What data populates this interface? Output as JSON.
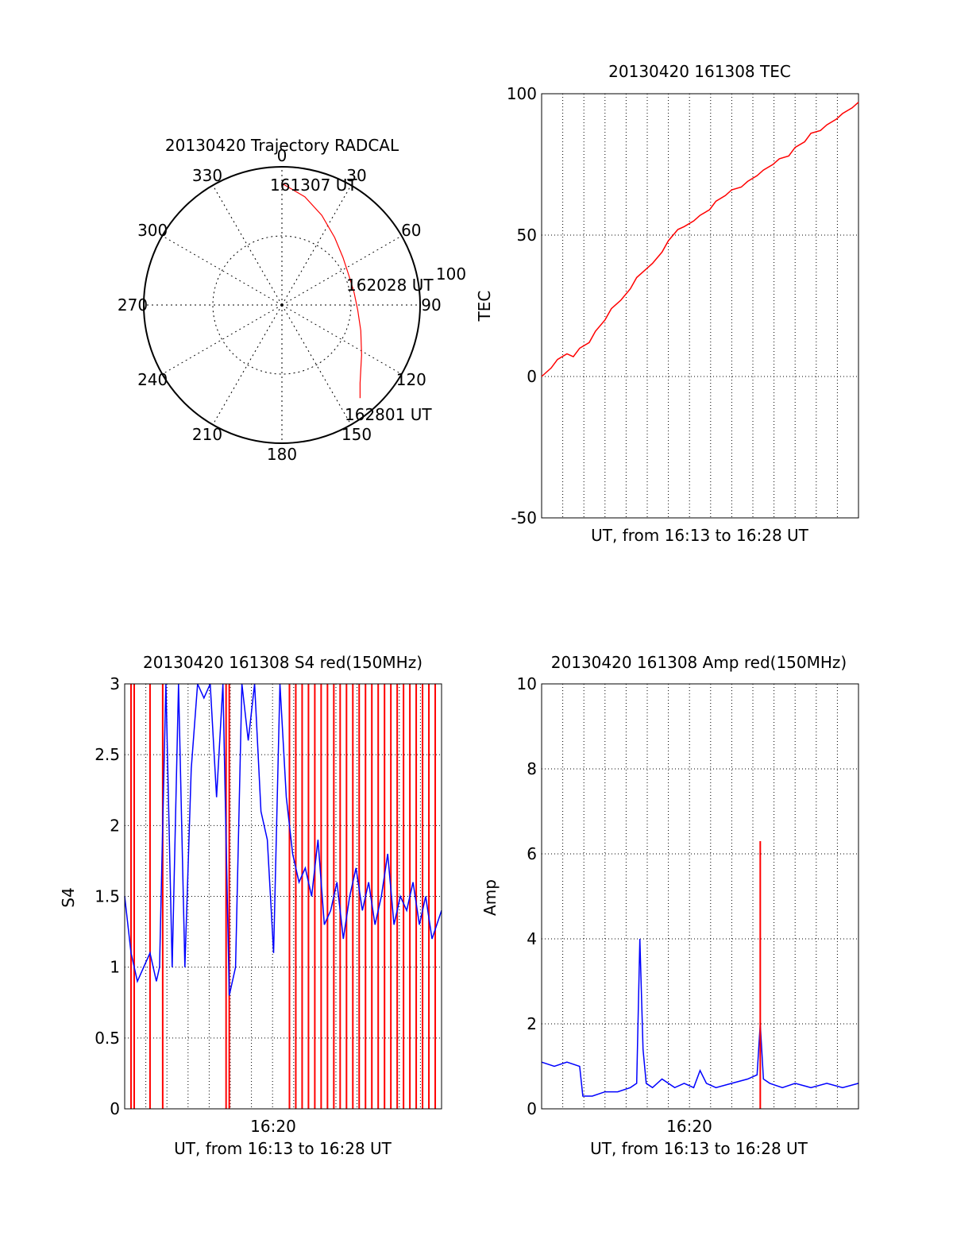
{
  "chart_data": [
    {
      "type": "polar",
      "title": "20130420 Trajectory RADCAL",
      "angle_labels": [
        "0",
        "30",
        "60",
        "90",
        "120",
        "150",
        "180",
        "210",
        "240",
        "270",
        "300",
        "330"
      ],
      "radius_label": "100",
      "rlim": [
        0,
        100
      ],
      "grid": true,
      "series": [
        {
          "color": "#ff0000",
          "points": [
            {
              "az": 0,
              "r": 88
            },
            {
              "az": 12,
              "r": 80
            },
            {
              "az": 24,
              "r": 71
            },
            {
              "az": 38,
              "r": 62
            },
            {
              "az": 52,
              "r": 56
            },
            {
              "az": 66,
              "r": 53
            },
            {
              "az": 80,
              "r": 53
            },
            {
              "az": 94,
              "r": 55
            },
            {
              "az": 108,
              "r": 60
            },
            {
              "az": 122,
              "r": 68
            },
            {
              "az": 135,
              "r": 80
            },
            {
              "az": 140,
              "r": 88
            }
          ]
        }
      ],
      "annotations": [
        "161307 UT",
        "162028 UT",
        "162801 UT"
      ]
    },
    {
      "type": "line",
      "title": "20130420 161308 TEC",
      "xlabel": "UT, from 16:13 to 16:28 UT",
      "ylabel": "TEC",
      "ylim": [
        -50,
        100
      ],
      "yticks": [
        "-50",
        "0",
        "50",
        "100"
      ],
      "grid": true,
      "series": [
        {
          "color": "#ff0000",
          "x_frac": [
            0,
            0.03,
            0.05,
            0.08,
            0.1,
            0.12,
            0.15,
            0.17,
            0.2,
            0.22,
            0.25,
            0.28,
            0.3,
            0.33,
            0.35,
            0.38,
            0.4,
            0.43,
            0.45,
            0.48,
            0.5,
            0.53,
            0.55,
            0.58,
            0.6,
            0.63,
            0.65,
            0.68,
            0.7,
            0.73,
            0.75,
            0.78,
            0.8,
            0.83,
            0.85,
            0.88,
            0.9,
            0.93,
            0.95,
            0.98,
            1.0
          ],
          "values": [
            0,
            3,
            6,
            8,
            7,
            10,
            12,
            16,
            20,
            24,
            27,
            31,
            35,
            38,
            40,
            44,
            48,
            52,
            53,
            55,
            57,
            59,
            62,
            64,
            66,
            67,
            69,
            71,
            73,
            75,
            77,
            78,
            81,
            83,
            86,
            87,
            89,
            91,
            93,
            95,
            97
          ]
        }
      ]
    },
    {
      "type": "line",
      "title": "20130420 161308 S4 red(150MHz)",
      "xlabel": "UT, from 16:13 to 16:28 UT",
      "ylabel": "S4",
      "xtick_label": "16:20",
      "ylim": [
        0,
        3
      ],
      "yticks": [
        "0",
        "0.5",
        "1",
        "1.5",
        "2",
        "2.5",
        "3"
      ],
      "grid": true,
      "series": [
        {
          "color": "#ff0000",
          "spikes_x_frac": [
            0.02,
            0.03,
            0.08,
            0.12,
            0.32,
            0.33,
            0.52,
            0.54,
            0.56,
            0.58,
            0.6,
            0.62,
            0.64,
            0.66,
            0.68,
            0.7,
            0.72,
            0.74,
            0.76,
            0.78,
            0.8,
            0.82,
            0.84,
            0.86,
            0.88,
            0.9,
            0.92,
            0.94,
            0.96,
            0.98
          ],
          "spike_value": 3
        },
        {
          "color": "#0000ff",
          "x_frac": [
            0,
            0.02,
            0.04,
            0.06,
            0.08,
            0.1,
            0.11,
            0.13,
            0.15,
            0.17,
            0.19,
            0.21,
            0.23,
            0.25,
            0.27,
            0.29,
            0.31,
            0.33,
            0.35,
            0.37,
            0.39,
            0.41,
            0.43,
            0.45,
            0.47,
            0.49,
            0.51,
            0.53,
            0.55,
            0.57,
            0.59,
            0.61,
            0.63,
            0.65,
            0.67,
            0.69,
            0.71,
            0.73,
            0.75,
            0.77,
            0.79,
            0.81,
            0.83,
            0.85,
            0.87,
            0.89,
            0.91,
            0.93,
            0.95,
            0.97,
            1.0
          ],
          "values": [
            1.5,
            1.1,
            0.9,
            1.0,
            1.1,
            0.9,
            1.0,
            3.0,
            1.0,
            3.0,
            1.0,
            2.4,
            3.0,
            2.9,
            3.0,
            2.2,
            3.0,
            0.8,
            1.0,
            3.0,
            2.6,
            3.0,
            2.1,
            1.9,
            1.1,
            3.0,
            2.2,
            1.8,
            1.6,
            1.7,
            1.5,
            1.9,
            1.3,
            1.4,
            1.6,
            1.2,
            1.5,
            1.7,
            1.4,
            1.6,
            1.3,
            1.5,
            1.8,
            1.3,
            1.5,
            1.4,
            1.6,
            1.3,
            1.5,
            1.2,
            1.4
          ]
        }
      ]
    },
    {
      "type": "line",
      "title": "20130420 161308 Amp red(150MHz)",
      "xlabel": "UT, from 16:13 to 16:28 UT",
      "ylabel": "Amp",
      "xtick_label": "16:20",
      "ylim": [
        0,
        10
      ],
      "yticks": [
        "0",
        "2",
        "4",
        "6",
        "8",
        "10"
      ],
      "grid": true,
      "series": [
        {
          "color": "#0000ff",
          "x_frac": [
            0,
            0.04,
            0.08,
            0.12,
            0.13,
            0.16,
            0.2,
            0.24,
            0.28,
            0.3,
            0.31,
            0.32,
            0.33,
            0.35,
            0.38,
            0.42,
            0.45,
            0.48,
            0.5,
            0.52,
            0.55,
            0.6,
            0.65,
            0.68,
            0.69,
            0.7,
            0.72,
            0.76,
            0.8,
            0.85,
            0.9,
            0.95,
            1.0
          ],
          "values": [
            1.1,
            1.0,
            1.1,
            1.0,
            0.3,
            0.3,
            0.4,
            0.4,
            0.5,
            0.6,
            4.0,
            1.4,
            0.6,
            0.5,
            0.7,
            0.5,
            0.6,
            0.5,
            0.9,
            0.6,
            0.5,
            0.6,
            0.7,
            0.8,
            2.0,
            0.7,
            0.6,
            0.5,
            0.6,
            0.5,
            0.6,
            0.5,
            0.6
          ]
        },
        {
          "color": "#ff0000",
          "spikes_x_frac": [
            0.69
          ],
          "spike_value": 6.3
        }
      ]
    }
  ]
}
